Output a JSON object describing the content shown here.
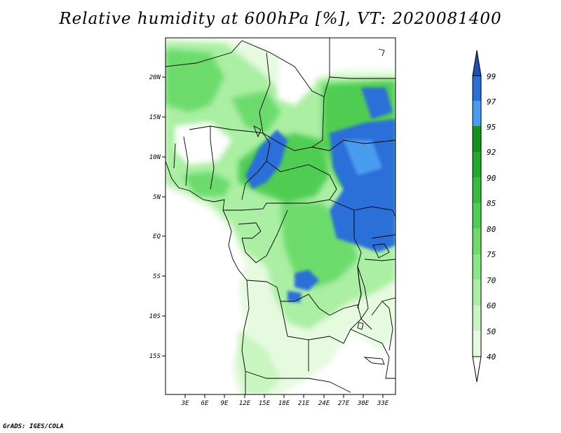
{
  "header": {
    "title": "Relative humidity at 600hPa [%], VT: 2020081400"
  },
  "footer": {
    "credit": "GrADS: IGES/COLA"
  },
  "map": {
    "lat_labels": [
      "20N",
      "15N",
      "10N",
      "5N",
      "EQ",
      "5S",
      "10S",
      "15S"
    ],
    "lon_labels": [
      "3E",
      "6E",
      "9E",
      "12E",
      "15E",
      "18E",
      "21E",
      "24E",
      "27E",
      "30E",
      "33E"
    ]
  },
  "colorbar": {
    "levels": [
      "40",
      "50",
      "60",
      "70",
      "75",
      "80",
      "85",
      "90",
      "92",
      "95",
      "97",
      "99"
    ],
    "colors": [
      "#ffffff",
      "#e6fae0",
      "#c8f5c0",
      "#aaefa3",
      "#8ae787",
      "#6cdb6c",
      "#4fcd53",
      "#39bb40",
      "#22a82c",
      "#14901c",
      "#4a9cf0",
      "#2a6fd8",
      "#1f4fb0"
    ]
  },
  "chart_data": {
    "type": "heatmap",
    "title": "Relative humidity at 600hPa [%], VT: 2020081400",
    "variable": "Relative humidity at 600hPa",
    "unit": "%",
    "lon_range": [
      0,
      34.5
    ],
    "lat_range": [
      -20,
      24.5
    ],
    "contour_levels": [
      40,
      50,
      60,
      70,
      75,
      80,
      85,
      90,
      92,
      95,
      97,
      99
    ]
  }
}
